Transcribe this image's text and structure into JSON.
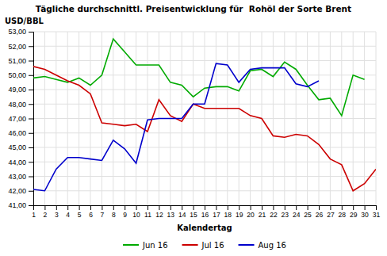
{
  "chart_data": {
    "type": "line",
    "title": "Tägliche durchschnittl. Preisentwicklung für  Rohöl der Sorte Brent",
    "x_label": "Kalendertag",
    "y_label": "USD/BBL",
    "x": [
      1,
      2,
      3,
      4,
      5,
      6,
      7,
      8,
      9,
      10,
      11,
      12,
      13,
      14,
      15,
      16,
      17,
      18,
      19,
      20,
      21,
      22,
      23,
      24,
      25,
      26,
      27,
      28,
      29,
      30,
      31
    ],
    "xlim": [
      1,
      31
    ],
    "xticks": [
      1,
      2,
      3,
      4,
      5,
      6,
      7,
      8,
      9,
      10,
      11,
      12,
      13,
      14,
      15,
      16,
      17,
      18,
      19,
      20,
      21,
      22,
      23,
      24,
      25,
      26,
      27,
      28,
      29,
      30,
      31
    ],
    "ylim": [
      41.0,
      53.0
    ],
    "yticks": [
      {
        "value": 41.0,
        "label": "41,00"
      },
      {
        "value": 42.0,
        "label": "42,00"
      },
      {
        "value": 43.0,
        "label": "43,00"
      },
      {
        "value": 44.0,
        "label": "44,00"
      },
      {
        "value": 45.0,
        "label": "45,00"
      },
      {
        "value": 46.0,
        "label": "46,00"
      },
      {
        "value": 47.0,
        "label": "47,00"
      },
      {
        "value": 48.0,
        "label": "48,00"
      },
      {
        "value": 49.0,
        "label": "49,00"
      },
      {
        "value": 50.0,
        "label": "50,00"
      },
      {
        "value": 51.0,
        "label": "51,00"
      },
      {
        "value": 52.0,
        "label": "52,00"
      },
      {
        "value": 53.0,
        "label": "53,00"
      }
    ],
    "grid": true,
    "legend": "bottom",
    "series": [
      {
        "name": "Jun 16",
        "color": "#00AA00",
        "values": [
          49.8,
          49.9,
          49.7,
          49.5,
          49.8,
          49.3,
          50.0,
          52.5,
          51.6,
          50.7,
          50.7,
          50.7,
          49.5,
          49.3,
          48.5,
          49.1,
          49.2,
          49.2,
          48.9,
          50.3,
          50.4,
          49.9,
          50.9,
          50.4,
          49.3,
          48.3,
          48.4,
          47.2,
          50.0,
          49.7,
          null
        ]
      },
      {
        "name": "Jul 16",
        "color": "#CC0000",
        "values": [
          50.6,
          50.4,
          50.0,
          49.6,
          49.3,
          48.7,
          46.7,
          46.6,
          46.5,
          46.6,
          46.1,
          48.3,
          47.2,
          46.8,
          48.0,
          47.7,
          47.7,
          47.7,
          47.7,
          47.2,
          47.0,
          45.8,
          45.7,
          45.9,
          45.8,
          45.2,
          44.2,
          43.8,
          42.0,
          42.5,
          43.5
        ]
      },
      {
        "name": "Aug 16",
        "color": "#0000CC",
        "values": [
          42.1,
          42.0,
          43.5,
          44.3,
          44.3,
          44.2,
          44.1,
          45.5,
          44.9,
          43.9,
          46.9,
          47.0,
          47.0,
          47.0,
          48.0,
          48.0,
          50.8,
          50.7,
          49.5,
          50.4,
          50.5,
          50.5,
          50.5,
          49.4,
          49.2,
          49.6,
          null,
          null,
          null,
          null,
          null
        ]
      }
    ]
  }
}
